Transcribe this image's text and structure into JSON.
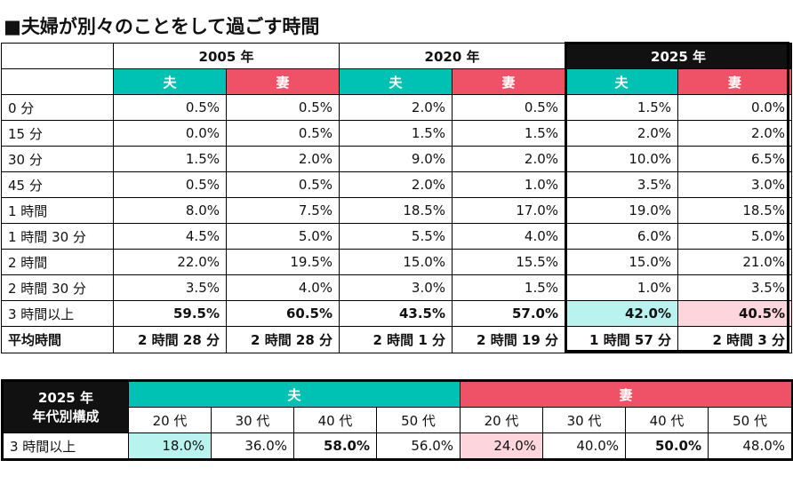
{
  "title": "■夫婦が別々のことをして過ごす時間",
  "table1": {
    "years": [
      "2005 年",
      "2020 年",
      "2025 年"
    ],
    "husband": "夫",
    "wife": "妻",
    "rows": [
      {
        "label": "0 分",
        "v": [
          "0.5%",
          "0.5%",
          "2.0%",
          "0.5%",
          "1.5%",
          "0.0%"
        ]
      },
      {
        "label": "15 分",
        "v": [
          "0.0%",
          "0.5%",
          "1.5%",
          "1.5%",
          "2.0%",
          "2.0%"
        ]
      },
      {
        "label": "30 分",
        "v": [
          "1.5%",
          "2.0%",
          "9.0%",
          "2.0%",
          "10.0%",
          "6.5%"
        ]
      },
      {
        "label": "45 分",
        "v": [
          "0.5%",
          "0.5%",
          "2.0%",
          "1.0%",
          "3.5%",
          "3.0%"
        ]
      },
      {
        "label": "1 時間",
        "v": [
          "8.0%",
          "7.5%",
          "18.5%",
          "17.0%",
          "19.0%",
          "18.5%"
        ]
      },
      {
        "label": "1 時間 30 分",
        "v": [
          "4.5%",
          "5.0%",
          "5.5%",
          "4.0%",
          "6.0%",
          "5.0%"
        ]
      },
      {
        "label": "2 時間",
        "v": [
          "22.0%",
          "19.5%",
          "15.0%",
          "15.5%",
          "15.0%",
          "21.0%"
        ]
      },
      {
        "label": "2 時間 30 分",
        "v": [
          "3.5%",
          "4.0%",
          "3.0%",
          "1.5%",
          "1.0%",
          "3.5%"
        ]
      },
      {
        "label": "3 時間以上",
        "v": [
          "59.5%",
          "60.5%",
          "43.5%",
          "57.0%",
          "42.0%",
          "40.5%"
        ]
      }
    ],
    "avg": {
      "label": "平均時間",
      "v": [
        "2 時間 28 分",
        "2 時間 28 分",
        "2 時間 1 分",
        "2 時間 19 分",
        "1 時間 57 分",
        "2 時間 3 分"
      ]
    }
  },
  "table2": {
    "year": "2025 年",
    "subtitle": "年代別構成",
    "husband": "夫",
    "wife": "妻",
    "decades": [
      "20 代",
      "30 代",
      "40 代",
      "50 代",
      "20 代",
      "30 代",
      "40 代",
      "50 代"
    ],
    "row": {
      "label": "3 時間以上",
      "v": [
        "18.0%",
        "36.0%",
        "58.0%",
        "56.0%",
        "24.0%",
        "40.0%",
        "50.0%",
        "48.0%"
      ]
    }
  },
  "colors": {
    "husband": "#00c2b4",
    "wife": "#ef5266",
    "dark": "#111111"
  }
}
